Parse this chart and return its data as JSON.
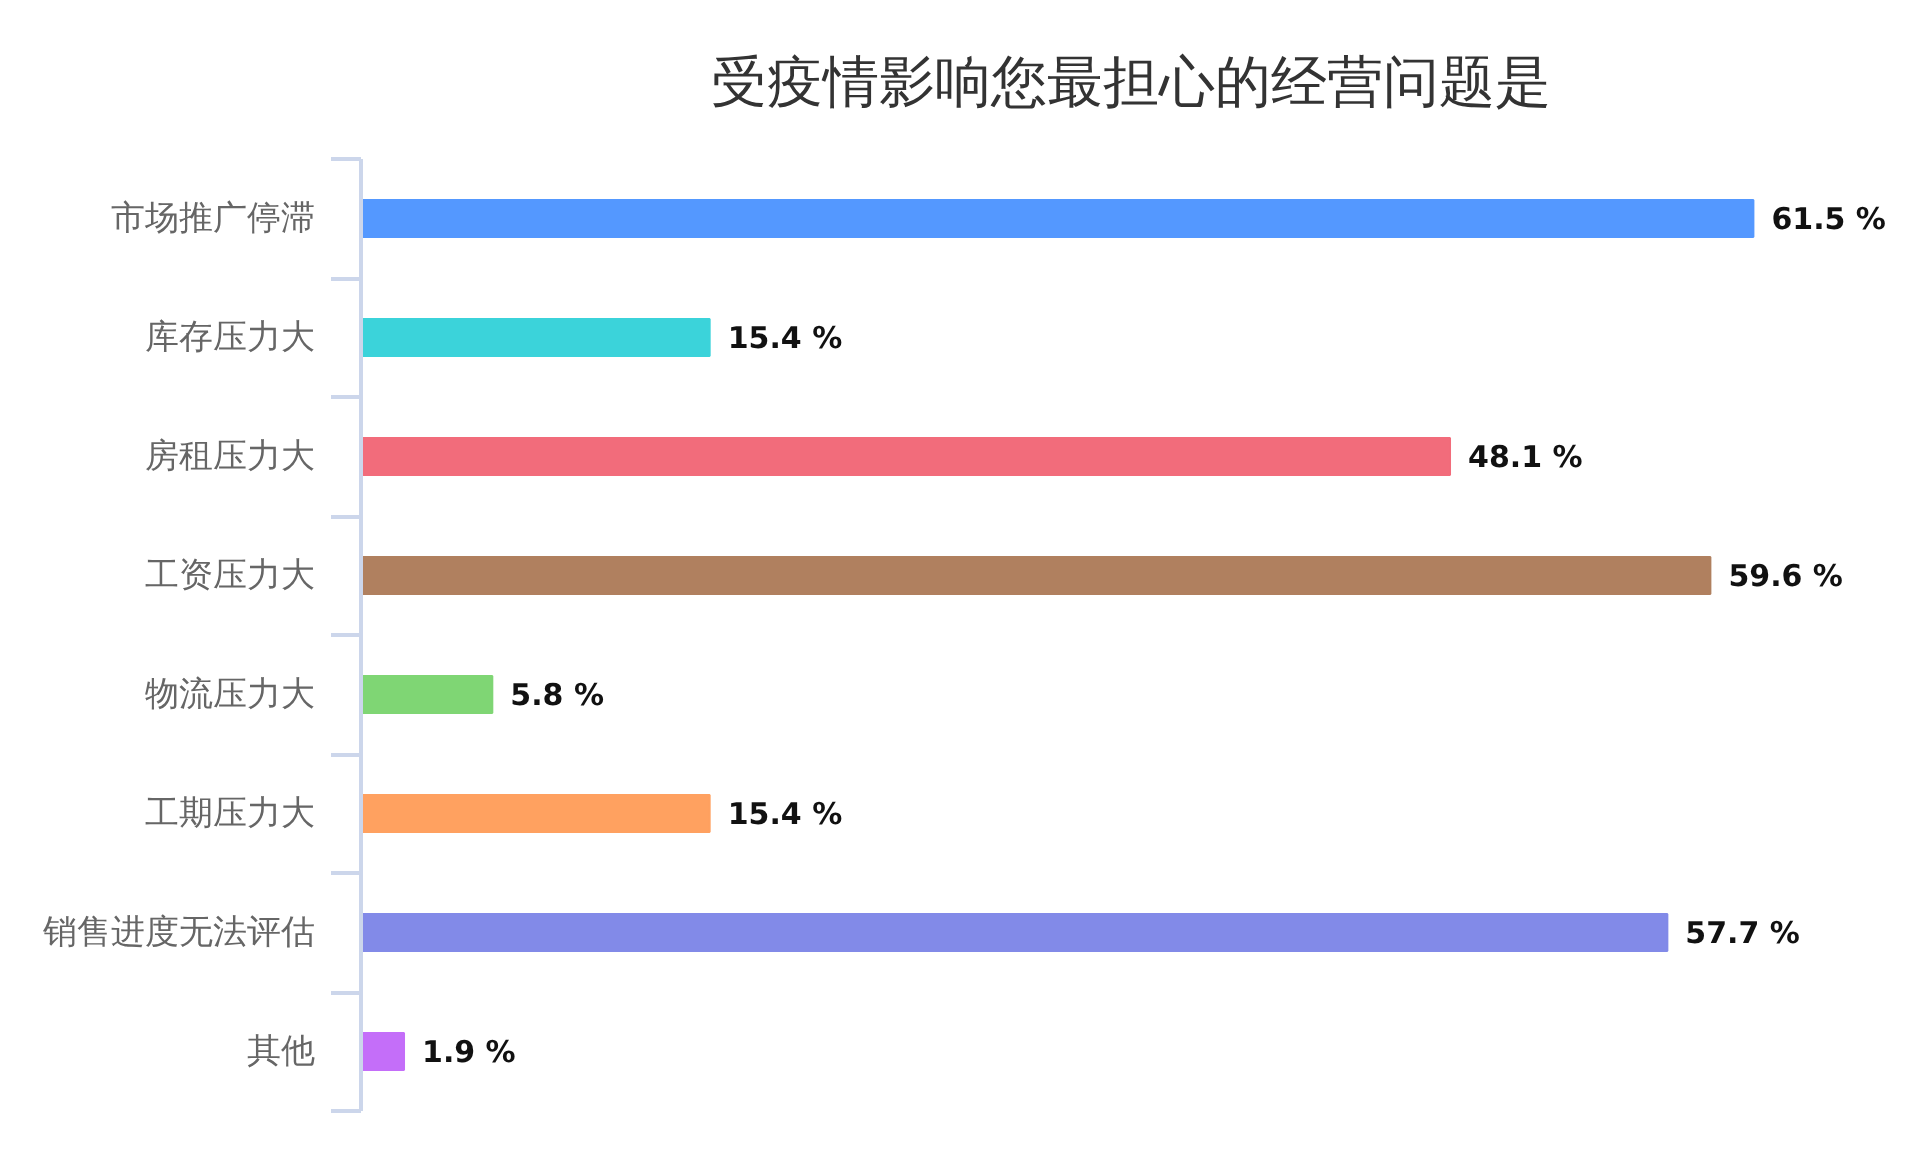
{
  "chart_data": {
    "type": "bar",
    "orientation": "horizontal",
    "title": "受疫情影响您最担心的经营问题是",
    "categories": [
      "市场推广停滞",
      "库存压力大",
      "房租压力大",
      "工资压力大",
      "物流压力大",
      "工期压力大",
      "销售进度无法评估",
      "其他"
    ],
    "values": [
      61.5,
      15.4,
      48.1,
      59.6,
      5.8,
      15.4,
      57.7,
      1.9
    ],
    "colors": [
      "#5498ff",
      "#3bd3da",
      "#f26c7b",
      "#b0805f",
      "#7fd674",
      "#ffa160",
      "#828ae8",
      "#c46ef9"
    ],
    "value_labels": [
      "61.5 %",
      "15.4 %",
      "48.1 %",
      "59.6 %",
      "5.8 %",
      "15.4 %",
      "57.7 %",
      "1.9 %"
    ],
    "tick_labels": "y"
  }
}
